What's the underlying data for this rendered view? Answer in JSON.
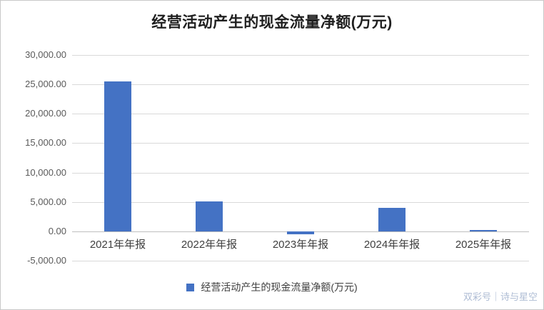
{
  "chart_data": {
    "type": "bar",
    "title": "经营活动产生的现金流量净额(万元)",
    "categories": [
      "2021年年报",
      "2022年年报",
      "2023年年报",
      "2024年年报",
      "2025年年报"
    ],
    "values": [
      25500,
      5100,
      -500,
      4000,
      250
    ],
    "ylim": [
      -5000,
      30000
    ],
    "ytick_step": 5000,
    "ytick_labels": [
      "30,000.00",
      "25,000.00",
      "20,000.00",
      "15,000.00",
      "10,000.00",
      "5,000.00",
      "0.00",
      "-5,000.00"
    ],
    "xlabel": "",
    "ylabel": "",
    "grid": true,
    "legend_position": "bottom",
    "legend_label": "经营活动产生的现金流量净额(万元)",
    "bar_color": "#4472C4",
    "gridline_color": "#d9d9d9"
  },
  "watermark": "双彩号｜诗与星空"
}
